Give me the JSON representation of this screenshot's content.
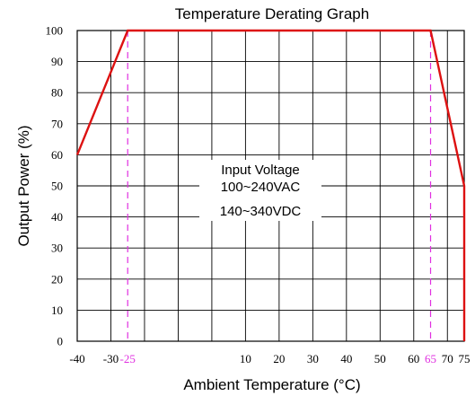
{
  "chart_data": {
    "type": "line",
    "title": "Temperature Derating Graph",
    "xlabel": "Ambient Temperature (°C)",
    "ylabel": "Output Power (%)",
    "xlim": [
      -40,
      75
    ],
    "ylim": [
      0,
      100
    ],
    "x_ticks": [
      -40,
      -30,
      -25,
      10,
      20,
      30,
      40,
      50,
      60,
      65,
      70,
      75
    ],
    "x_ticks_labels": [
      "-40",
      "-30",
      "-25",
      "10",
      "20",
      "30",
      "40",
      "50",
      "60",
      "65",
      "70",
      "75"
    ],
    "x_ticks_highlighted": [
      -25,
      65
    ],
    "y_ticks": [
      0,
      10,
      20,
      30,
      40,
      50,
      60,
      70,
      80,
      90,
      100
    ],
    "y_ticks_labels": [
      "0",
      "10",
      "20",
      "30",
      "40",
      "50",
      "60",
      "70",
      "80",
      "90",
      "100"
    ],
    "grid": true,
    "x_gridlines": [
      -30,
      -20,
      -10,
      0,
      10,
      20,
      30,
      40,
      50,
      60,
      70
    ],
    "highlight_color": "#e030e0",
    "line_color": "#dd1111",
    "series": [
      {
        "points": [
          {
            "x": -40,
            "y": 60
          },
          {
            "x": -25,
            "y": 100
          },
          {
            "x": 65,
            "y": 100
          },
          {
            "x": 75,
            "y": 50
          },
          {
            "x": 75,
            "y": 0
          }
        ]
      }
    ],
    "reference_lines": [
      {
        "x": -25,
        "style": "dashed"
      },
      {
        "x": 65,
        "style": "dashed"
      }
    ],
    "annotation": {
      "lines": [
        "Input Voltage",
        "100~240VAC",
        "140~340VDC"
      ]
    }
  }
}
